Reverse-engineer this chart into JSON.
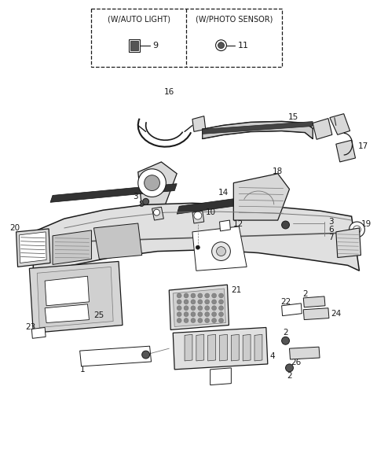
{
  "background_color": "#ffffff",
  "fig_width": 4.8,
  "fig_height": 5.71,
  "dpi": 100
}
